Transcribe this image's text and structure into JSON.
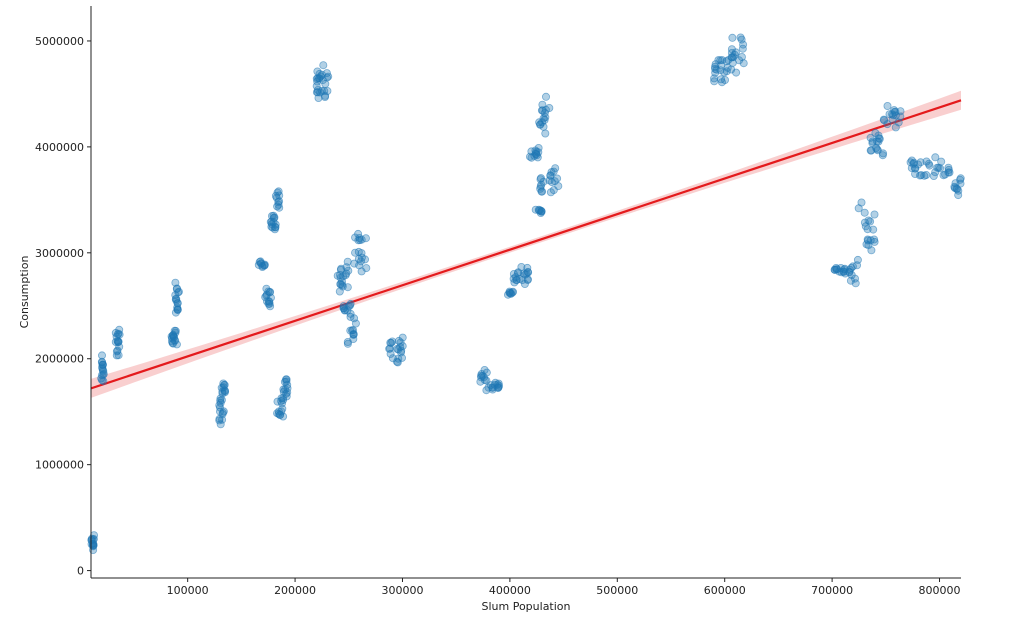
{
  "chart_data": {
    "type": "scatter",
    "title": "",
    "xlabel": "Slum Population",
    "ylabel": "Consumption",
    "xlim": [
      10000,
      820000
    ],
    "ylim": [
      -70000,
      5330000
    ],
    "x_ticks": [
      100000,
      200000,
      300000,
      400000,
      500000,
      600000,
      700000,
      800000
    ],
    "x_tick_labels": [
      "100000",
      "200000",
      "300000",
      "400000",
      "500000",
      "600000",
      "700000",
      "800000"
    ],
    "y_ticks": [
      0,
      1000000,
      2000000,
      3000000,
      4000000,
      5000000
    ],
    "y_tick_labels": [
      "0",
      "1000000",
      "2000000",
      "3000000",
      "4000000",
      "5000000"
    ],
    "grid": false,
    "legend": "none",
    "point_color": "#1f77b4",
    "regression": {
      "color": "#e41a1c",
      "band_color": "#f4a7a7",
      "x": [
        10000,
        820000
      ],
      "y": [
        1720000,
        4440000
      ],
      "ci_halfwidth_at_ends": 90000,
      "ci_halfwidth_at_center": 28000
    },
    "clusters": [
      {
        "x": [
          10000,
          13000
        ],
        "y": [
          180000,
          340000
        ],
        "n": 14
      },
      {
        "x": [
          19000,
          22000
        ],
        "y": [
          1760000,
          2050000
        ],
        "n": 16
      },
      {
        "x": [
          33000,
          37000
        ],
        "y": [
          2020000,
          2300000
        ],
        "n": 16
      },
      {
        "x": [
          85000,
          90000
        ],
        "y": [
          2100000,
          2280000
        ],
        "n": 16
      },
      {
        "x": [
          88000,
          92000
        ],
        "y": [
          2380000,
          2730000
        ],
        "n": 16
      },
      {
        "x": [
          129000,
          134000
        ],
        "y": [
          1380000,
          1640000
        ],
        "n": 14
      },
      {
        "x": [
          131000,
          136000
        ],
        "y": [
          1650000,
          1790000
        ],
        "n": 10
      },
      {
        "x": [
          166000,
          172000
        ],
        "y": [
          2860000,
          2920000
        ],
        "n": 10
      },
      {
        "x": [
          172000,
          178000
        ],
        "y": [
          2450000,
          2680000
        ],
        "n": 14
      },
      {
        "x": [
          177000,
          183000
        ],
        "y": [
          3190000,
          3380000
        ],
        "n": 14
      },
      {
        "x": [
          182000,
          186000
        ],
        "y": [
          3400000,
          3600000
        ],
        "n": 10
      },
      {
        "x": [
          183000,
          189000
        ],
        "y": [
          1400000,
          1670000
        ],
        "n": 14
      },
      {
        "x": [
          189000,
          193000
        ],
        "y": [
          1620000,
          1850000
        ],
        "n": 12
      },
      {
        "x": [
          220000,
          232000
        ],
        "y": [
          4420000,
          4800000
        ],
        "n": 26
      },
      {
        "x": [
          238000,
          250000
        ],
        "y": [
          2600000,
          2920000
        ],
        "n": 18
      },
      {
        "x": [
          244000,
          252000
        ],
        "y": [
          2420000,
          2540000
        ],
        "n": 10
      },
      {
        "x": [
          247000,
          257000
        ],
        "y": [
          2100000,
          2420000
        ],
        "n": 12
      },
      {
        "x": [
          255000,
          267000
        ],
        "y": [
          2820000,
          3220000
        ],
        "n": 18
      },
      {
        "x": [
          286000,
          302000
        ],
        "y": [
          1950000,
          2220000
        ],
        "n": 20
      },
      {
        "x": [
          371000,
          379000
        ],
        "y": [
          1770000,
          1900000
        ],
        "n": 10
      },
      {
        "x": [
          378000,
          390000
        ],
        "y": [
          1690000,
          1780000
        ],
        "n": 14
      },
      {
        "x": [
          397000,
          403000
        ],
        "y": [
          2600000,
          2640000
        ],
        "n": 8
      },
      {
        "x": [
          402000,
          418000
        ],
        "y": [
          2680000,
          2880000
        ],
        "n": 20
      },
      {
        "x": [
          418000,
          427000
        ],
        "y": [
          3880000,
          4000000
        ],
        "n": 12
      },
      {
        "x": [
          424000,
          430000
        ],
        "y": [
          3370000,
          3420000
        ],
        "n": 8
      },
      {
        "x": [
          427000,
          438000
        ],
        "y": [
          4100000,
          4480000
        ],
        "n": 16
      },
      {
        "x": [
          428000,
          447000
        ],
        "y": [
          3520000,
          3820000
        ],
        "n": 20
      },
      {
        "x": [
          590000,
          604000
        ],
        "y": [
          4600000,
          4880000
        ],
        "n": 20
      },
      {
        "x": [
          604000,
          618000
        ],
        "y": [
          4680000,
          5070000
        ],
        "n": 18
      },
      {
        "x": [
          702000,
          717000
        ],
        "y": [
          2800000,
          2870000
        ],
        "n": 14
      },
      {
        "x": [
          716000,
          724000
        ],
        "y": [
          2690000,
          2950000
        ],
        "n": 10
      },
      {
        "x": [
          724000,
          740000
        ],
        "y": [
          2950000,
          3480000
        ],
        "n": 18
      },
      {
        "x": [
          735000,
          748000
        ],
        "y": [
          3890000,
          4150000
        ],
        "n": 16
      },
      {
        "x": [
          748000,
          765000
        ],
        "y": [
          4180000,
          4400000
        ],
        "n": 16
      },
      {
        "x": [
          773000,
          812000
        ],
        "y": [
          3680000,
          3910000
        ],
        "n": 30
      },
      {
        "x": [
          812000,
          820000
        ],
        "y": [
          3540000,
          3720000
        ],
        "n": 10
      }
    ]
  }
}
